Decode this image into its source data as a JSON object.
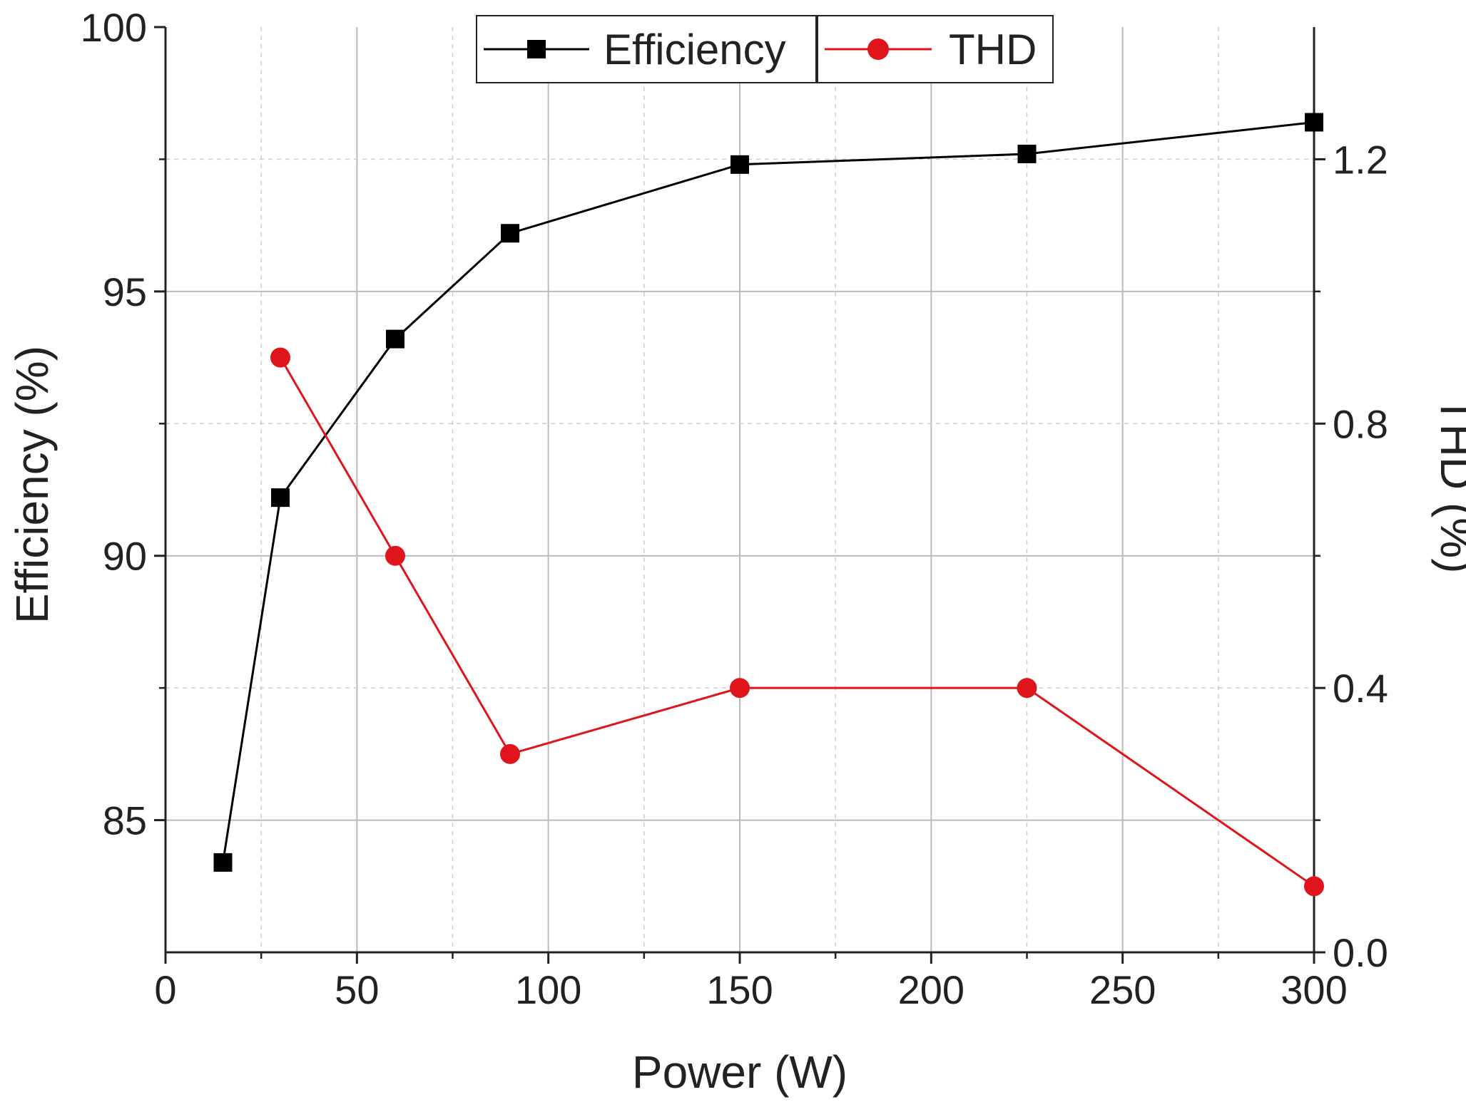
{
  "chart_data": {
    "type": "line",
    "x": {
      "label": "Power (W)",
      "range": [
        0,
        300
      ],
      "ticks": [
        0,
        50,
        100,
        150,
        200,
        250,
        300
      ],
      "tick_labels": [
        "0",
        "50",
        "100",
        "150",
        "200",
        "250",
        "300"
      ]
    },
    "y_left": {
      "label": "Efficiency (%)",
      "range": [
        82.5,
        100
      ],
      "ticks": [
        85,
        90,
        95,
        100
      ],
      "tick_labels": [
        "85",
        "90",
        "95",
        "100"
      ]
    },
    "y_right": {
      "label": "THD (%)",
      "range": [
        0,
        1.4
      ],
      "ticks": [
        0,
        0.4,
        0.8,
        1.2
      ],
      "tick_labels": [
        "0.0",
        "0.4",
        "0.8",
        "1.2"
      ]
    },
    "grid": true,
    "legend_position": "top-center",
    "series": [
      {
        "name": "Efficiency",
        "axis": "left",
        "color": "#000000",
        "marker": "square",
        "x": [
          15,
          30,
          60,
          90,
          150,
          225,
          300
        ],
        "values": [
          84.2,
          91.1,
          94.1,
          96.1,
          97.4,
          97.6,
          98.2
        ]
      },
      {
        "name": "THD",
        "axis": "right",
        "color": "#e0141b",
        "marker": "circle",
        "x": [
          30,
          60,
          90,
          150,
          225,
          300
        ],
        "values": [
          0.9,
          0.6,
          0.3,
          0.4,
          0.4,
          0.1
        ]
      }
    ]
  }
}
